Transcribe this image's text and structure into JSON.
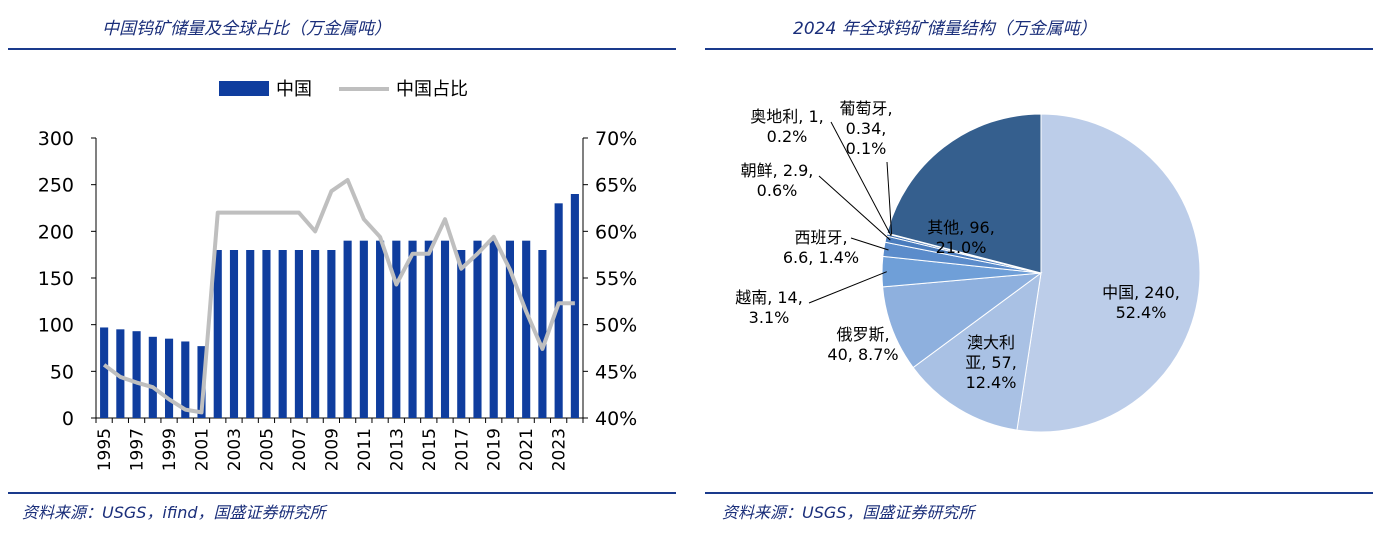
{
  "left_panel": {
    "title": "中国钨矿储量及全球占比（万金属吨）",
    "source": "资料来源：USGS，ifind，国盛证券研究所"
  },
  "right_panel": {
    "title": "2024 年全球钨矿储量结构（万金属吨）",
    "source": "资料来源：USGS，国盛证券研究所"
  },
  "colors": {
    "rule": "#1a3a8c",
    "title": "#1a2e7a",
    "bar": "#0f3d9e",
    "line": "#bfbfbf"
  },
  "chart_data": [
    {
      "type": "bar",
      "secondary_type": "line",
      "categories": [
        "1995",
        "1996",
        "1997",
        "1998",
        "1999",
        "2000",
        "2001",
        "2002",
        "2003",
        "2004",
        "2005",
        "2006",
        "2007",
        "2008",
        "2009",
        "2010",
        "2011",
        "2012",
        "2013",
        "2014",
        "2015",
        "2016",
        "2017",
        "2018",
        "2019",
        "2020",
        "2021",
        "2022",
        "2023",
        "2024"
      ],
      "x_tick_labels": [
        "1995",
        "1997",
        "1999",
        "2001",
        "2003",
        "2005",
        "2007",
        "2009",
        "2011",
        "2013",
        "2015",
        "2017",
        "2019",
        "2021",
        "2023"
      ],
      "series": [
        {
          "name": "中国",
          "axis": "left",
          "type": "bar",
          "values": [
            97,
            95,
            93,
            87,
            85,
            82,
            77,
            180,
            180,
            180,
            180,
            180,
            180,
            180,
            180,
            190,
            190,
            190,
            190,
            190,
            190,
            190,
            180,
            190,
            190,
            190,
            190,
            180,
            230,
            240
          ]
        },
        {
          "name": "中国占比",
          "axis": "right",
          "type": "line",
          "values": [
            45.7,
            44.4,
            43.8,
            43.3,
            42.0,
            40.9,
            40.6,
            62.0,
            62.0,
            62.0,
            62.0,
            62.0,
            62.0,
            60.0,
            64.3,
            65.5,
            61.3,
            59.4,
            54.3,
            57.6,
            57.6,
            61.3,
            56.0,
            57.6,
            59.4,
            55.9,
            51.4,
            47.4,
            52.3,
            52.3
          ]
        }
      ],
      "left_axis": {
        "ylim": [
          0,
          300
        ],
        "ticks": [
          "0",
          "50",
          "100",
          "150",
          "200",
          "250",
          "300"
        ]
      },
      "right_axis": {
        "ylim": [
          40,
          70
        ],
        "ticks": [
          "40%",
          "45%",
          "50%",
          "55%",
          "60%",
          "65%",
          "70%"
        ]
      },
      "legend": {
        "placement": "top-center",
        "items": [
          "中国",
          "中国占比"
        ]
      },
      "grid": false
    },
    {
      "type": "pie",
      "slices": [
        {
          "label": "中国",
          "value": 240,
          "percent": "52.4%",
          "color": "#bccde9",
          "text": "中国, 240,",
          "text2": "52.4%"
        },
        {
          "label": "澳大利亚",
          "value": 57,
          "percent": "12.4%",
          "color": "#a9c1e4",
          "text": "澳大利",
          "text2": "亚, 57,",
          "text3": "12.4%"
        },
        {
          "label": "俄罗斯",
          "value": 40,
          "percent": "8.7%",
          "color": "#8eb0de",
          "text": "俄罗斯,",
          "text2": "40, 8.7%"
        },
        {
          "label": "越南",
          "value": 14,
          "percent": "3.1%",
          "color": "#6f9fd8",
          "text": "越南, 14,",
          "text2": "3.1%"
        },
        {
          "label": "西班牙",
          "value": 6.6,
          "percent": "1.4%",
          "color": "#5b8ccb",
          "text": "西班牙,",
          "text2": "6.6, 1.4%"
        },
        {
          "label": "朝鲜",
          "value": 2.9,
          "percent": "0.6%",
          "color": "#4a7cbd",
          "text": "朝鲜, 2.9,",
          "text2": "0.6%"
        },
        {
          "label": "奥地利",
          "value": 1,
          "percent": "0.2%",
          "color": "#3f6fae",
          "text": "奥地利, 1,",
          "text2": "0.2%"
        },
        {
          "label": "葡萄牙",
          "value": 0.34,
          "percent": "0.1%",
          "color": "#36649e",
          "text": "葡萄牙,",
          "text2": "0.34,",
          "text3": "0.1%"
        },
        {
          "label": "其他",
          "value": 96,
          "percent": "21.0%",
          "color": "#355f8e",
          "text": "其他, 96,",
          "text2": "21.0%"
        }
      ]
    }
  ]
}
